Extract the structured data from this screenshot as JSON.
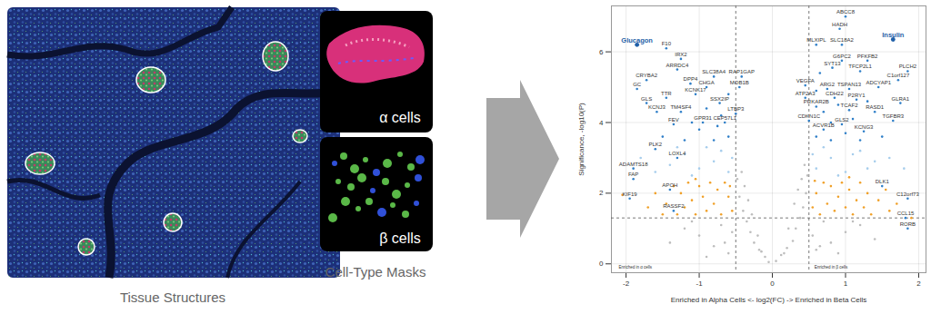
{
  "panels": {
    "tissue_label": "Tissue Structures",
    "masks_title": "Cell-Type Masks",
    "mask_labels": [
      "α cells",
      "β cells"
    ]
  },
  "chart_data": {
    "type": "scatter",
    "xlabel": "Enriched in Alpha Cells <- log2(FC) -> Enriched in Beta Cells",
    "ylabel": "Significance, -log10(P)",
    "xlim": [
      -2.2,
      2.1
    ],
    "ylim": [
      -0.25,
      7.3
    ],
    "xticks": [
      -2,
      -1,
      0,
      1,
      2
    ],
    "yticks": [
      0,
      2,
      4,
      6
    ],
    "grid": true,
    "cutoffs": {
      "x": [
        -0.5,
        0.5
      ],
      "y": 1.3
    },
    "annotations": [
      "Enriched in α cells",
      "Enriched in β cells"
    ],
    "series": [
      {
        "color": "#bdbdbd",
        "x": [
          -0.05,
          0.05,
          -0.1,
          0.12,
          -0.18,
          0.2,
          -0.25,
          0.28,
          -0.3,
          0.32,
          -0.35,
          0.38,
          -0.4,
          0.42,
          -0.45,
          0.46,
          -0.38,
          0.4,
          -0.42,
          0.44,
          -0.2,
          0.22,
          -0.28,
          0.3,
          -0.15,
          0.16,
          -0.48,
          0.48,
          -0.33,
          0.35,
          -0.6,
          -0.8,
          -1.0,
          -1.2,
          -0.7,
          -0.9,
          -1.4,
          -1.1,
          0.6,
          0.8,
          1.0,
          1.2,
          0.7,
          0.9,
          1.4,
          1.1,
          -0.55,
          0.55,
          -0.65,
          0.65
        ],
        "y": [
          0.05,
          0.08,
          0.2,
          0.25,
          0.4,
          0.45,
          0.6,
          0.65,
          0.9,
          1.0,
          1.2,
          1.3,
          1.5,
          1.6,
          1.9,
          2.0,
          2.2,
          2.4,
          2.6,
          2.8,
          0.8,
          1.0,
          1.4,
          1.7,
          0.35,
          0.3,
          2.4,
          2.5,
          1.8,
          2.1,
          0.3,
          0.5,
          0.8,
          1.0,
          1.1,
          0.2,
          0.6,
          1.2,
          0.4,
          0.6,
          0.9,
          1.1,
          1.2,
          0.3,
          0.7,
          1.2,
          0.9,
          0.8,
          0.6,
          0.5
        ]
      },
      {
        "color": "#f0a028",
        "x": [
          -0.55,
          -0.6,
          -0.7,
          -0.75,
          -0.8,
          -0.85,
          -0.9,
          -0.95,
          -1.0,
          -1.05,
          -1.1,
          -1.15,
          -1.2,
          -1.25,
          -1.3,
          -1.35,
          -1.45,
          -1.5,
          -1.6,
          -1.7,
          -0.65,
          -1.05,
          -0.58,
          -2.05,
          0.55,
          0.6,
          0.65,
          0.7,
          0.75,
          0.8,
          0.85,
          0.9,
          0.95,
          1.0,
          1.05,
          1.1,
          1.15,
          1.2,
          1.25,
          1.3,
          1.35,
          1.45,
          1.55,
          1.6,
          0.58,
          1.05,
          1.7,
          1.9
        ],
        "y": [
          1.5,
          1.9,
          1.4,
          2.1,
          1.7,
          2.3,
          1.5,
          1.9,
          2.2,
          1.4,
          1.8,
          2.3,
          1.6,
          2.0,
          1.4,
          2.2,
          1.7,
          1.4,
          2.0,
          1.6,
          2.3,
          2.4,
          2.2,
          1.95,
          1.6,
          2.0,
          1.4,
          2.3,
          1.7,
          2.2,
          1.5,
          1.9,
          2.3,
          1.6,
          2.1,
          1.4,
          1.8,
          2.3,
          1.6,
          2.0,
          1.4,
          1.8,
          2.1,
          1.5,
          2.35,
          2.45,
          1.7,
          1.3
        ]
      },
      {
        "color": "#a6cdec",
        "x": [
          -0.6,
          -0.8,
          -1.0,
          -1.2,
          -0.7,
          -1.4,
          -0.9,
          -1.6,
          -1.1,
          -0.55,
          -1.3,
          -1.8,
          0.6,
          0.8,
          1.0,
          1.2,
          0.7,
          1.4,
          0.9,
          1.1,
          1.3,
          0.55,
          1.6,
          1.8
        ],
        "y": [
          2.6,
          2.9,
          2.7,
          3.1,
          3.2,
          2.8,
          3.3,
          2.6,
          2.5,
          3.0,
          3.3,
          3.0,
          2.7,
          3.0,
          2.6,
          3.2,
          3.3,
          2.9,
          2.5,
          3.1,
          2.7,
          3.1,
          3.0,
          2.7
        ]
      },
      {
        "color": "#2f7fc8",
        "x": [
          -0.6,
          -0.8,
          -1.0,
          -1.2,
          -0.7,
          -0.9,
          -1.1,
          -1.5,
          -0.6,
          -0.75,
          0.6,
          0.8,
          1.0,
          1.2,
          0.7,
          0.9,
          1.1,
          1.5,
          0.6,
          0.8,
          1.3,
          0.65
        ],
        "y": [
          3.6,
          3.5,
          3.8,
          3.5,
          4.2,
          4.4,
          4.0,
          3.6,
          4.8,
          3.9,
          3.6,
          3.5,
          3.7,
          3.5,
          4.3,
          4.5,
          4.1,
          3.6,
          4.9,
          4.0,
          4.6,
          5.4
        ]
      },
      {
        "color": "#2f7fc8",
        "labels": [
          "F10",
          "IRX2",
          "CRYBA2",
          "ARRDC4",
          "GC",
          "DPP4",
          "TTR",
          "KCNK17",
          "GLS",
          "TM4SF4",
          "KCNJ3",
          "FEV",
          "GPR31",
          "PLK2",
          "LOXL4",
          "ADAMTS18",
          "FAP",
          "APOH",
          "RASSF2",
          "KIF19",
          "SLC38A4",
          "RAP1GAP",
          "CHGA",
          "MOB1B",
          "SSX2IP",
          "LTBP3",
          "CEP57L1",
          "ABCC8",
          "HADH",
          "MLXIPL",
          "SLC18A2",
          "G6PC2",
          "PFKFB2",
          "PLCH2",
          "C1orf127",
          "SYT13",
          "TFCP2L1",
          "VEGFA",
          "ARG2",
          "TSPAN13",
          "ADCYAP1",
          "ATP2A3",
          "CDH22",
          "P2RY1",
          "GLRA1",
          "PRKAR2B",
          "TCAF2",
          "RASD1",
          "CDKN1C",
          "GLS2",
          "TGFBR3",
          "ACVR1B",
          "KCNG3",
          "DLK1",
          "C12orf73",
          "CCL15",
          "RORB"
        ],
        "x": [
          -1.45,
          -1.25,
          -1.72,
          -1.3,
          -1.85,
          -1.12,
          -1.45,
          -1.05,
          -1.72,
          -1.25,
          -1.58,
          -1.35,
          -0.95,
          -1.6,
          -1.3,
          -1.9,
          -1.9,
          -1.4,
          -1.35,
          -1.95,
          -0.8,
          -0.42,
          -0.9,
          -0.45,
          -0.72,
          -0.5,
          -0.65,
          1.0,
          0.92,
          0.6,
          0.95,
          0.95,
          1.3,
          1.85,
          1.72,
          0.82,
          1.2,
          0.45,
          0.75,
          1.05,
          1.45,
          0.45,
          0.85,
          1.15,
          1.75,
          0.6,
          1.05,
          1.4,
          0.5,
          0.95,
          1.65,
          0.7,
          1.25,
          1.5,
          1.85,
          1.82,
          1.85
        ],
        "y": [
          6.1,
          5.8,
          5.2,
          5.5,
          4.95,
          5.1,
          4.7,
          4.8,
          4.55,
          4.3,
          4.3,
          3.95,
          4.0,
          3.25,
          3.0,
          2.7,
          2.4,
          2.1,
          1.5,
          1.85,
          5.3,
          5.3,
          5.0,
          5.0,
          4.55,
          4.25,
          4.0,
          7.0,
          6.65,
          6.2,
          6.2,
          5.75,
          5.75,
          5.45,
          5.2,
          5.55,
          5.45,
          5.05,
          4.95,
          4.95,
          5.0,
          4.7,
          4.7,
          4.65,
          4.55,
          4.45,
          4.35,
          4.3,
          4.05,
          3.95,
          4.05,
          3.8,
          3.75,
          2.2,
          1.85,
          1.3,
          1.0
        ]
      },
      {
        "color": "#1f5fa8",
        "marker": "large",
        "labels": [
          "Glucagon",
          "Insulin"
        ],
        "x": [
          -1.85,
          1.65
        ],
        "y": [
          6.2,
          6.35
        ]
      }
    ]
  }
}
